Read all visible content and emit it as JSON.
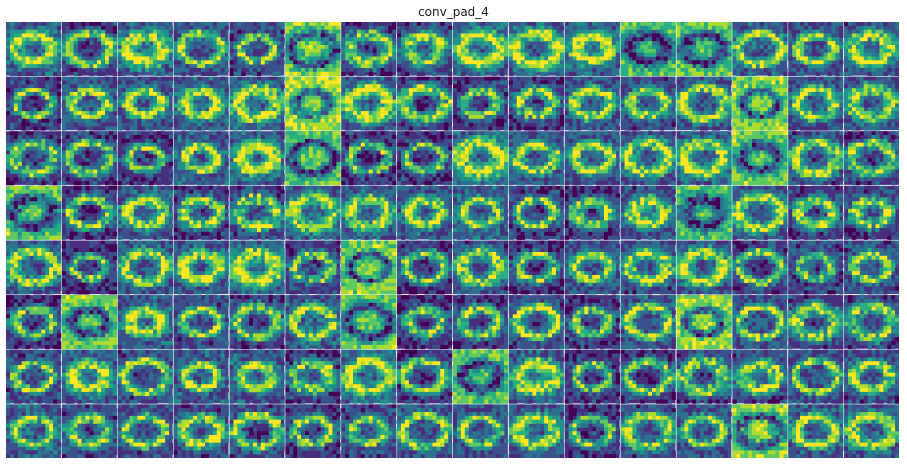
{
  "figure": {
    "title": "conv_pad_4"
  },
  "grid": {
    "rows": 8,
    "cols": 16
  },
  "colormap": {
    "name": "viridis",
    "stops": [
      "#440154",
      "#472f7d",
      "#3b518b",
      "#2c718e",
      "#21918c",
      "#28ae80",
      "#5ec962",
      "#addc30",
      "#fde725"
    ]
  }
}
